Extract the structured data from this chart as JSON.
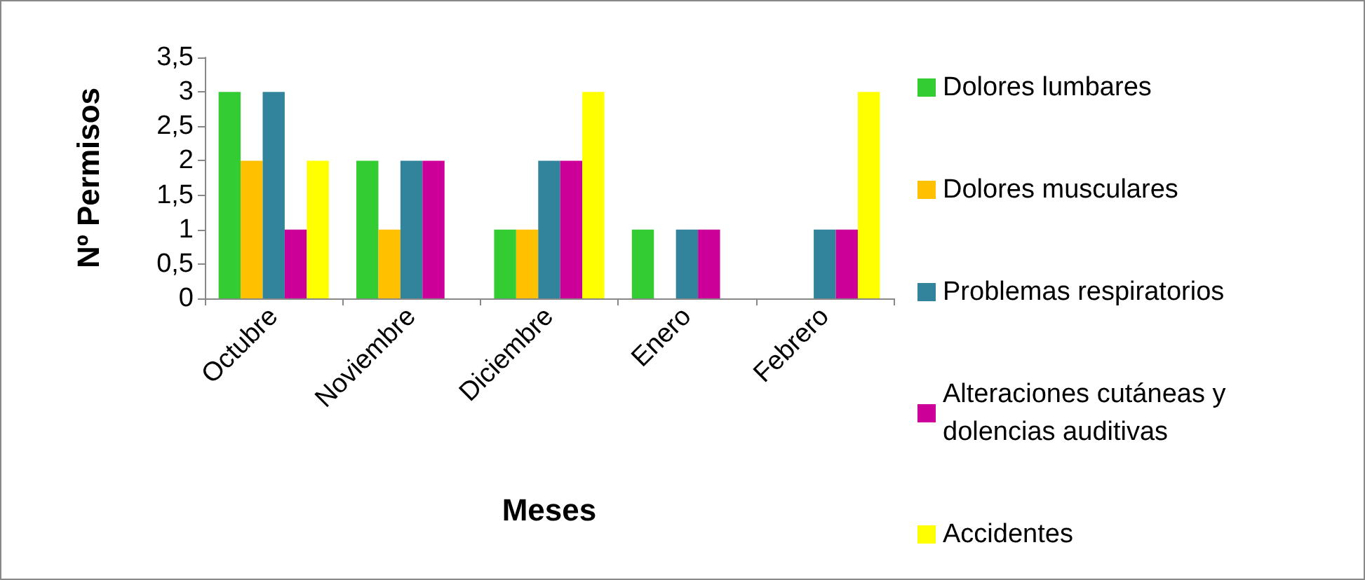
{
  "chart_data": {
    "type": "bar",
    "xlabel": "Meses",
    "ylabel": "Nº Permisos",
    "categories": [
      "Octubre",
      "Noviembre",
      "Diciembre",
      "Enero",
      "Febrero"
    ],
    "series": [
      {
        "name": "Dolores lumbares",
        "color": "#33cc33",
        "values": [
          3,
          2,
          1,
          1,
          0
        ]
      },
      {
        "name": "Dolores musculares",
        "color": "#ffc000",
        "values": [
          2,
          1,
          1,
          0,
          0
        ]
      },
      {
        "name": "Problemas respiratorios",
        "color": "#31849b",
        "values": [
          3,
          2,
          2,
          1,
          1
        ]
      },
      {
        "name": "Alteraciones cutáneas y dolencias auditivas",
        "color": "#cc0099",
        "values": [
          1,
          2,
          2,
          1,
          1
        ]
      },
      {
        "name": "Accidentes",
        "color": "#ffff00",
        "values": [
          2,
          0,
          3,
          0,
          3
        ]
      }
    ],
    "ylim": [
      0,
      3.5
    ],
    "yticks": [
      {
        "value": 0,
        "label": "0"
      },
      {
        "value": 0.5,
        "label": "0,5"
      },
      {
        "value": 1,
        "label": "1"
      },
      {
        "value": 1.5,
        "label": "1,5"
      },
      {
        "value": 2,
        "label": "2"
      },
      {
        "value": 2.5,
        "label": "2,5"
      },
      {
        "value": 3,
        "label": "3"
      },
      {
        "value": 3.5,
        "label": "3,5"
      }
    ],
    "grid": false,
    "legend": "right"
  }
}
